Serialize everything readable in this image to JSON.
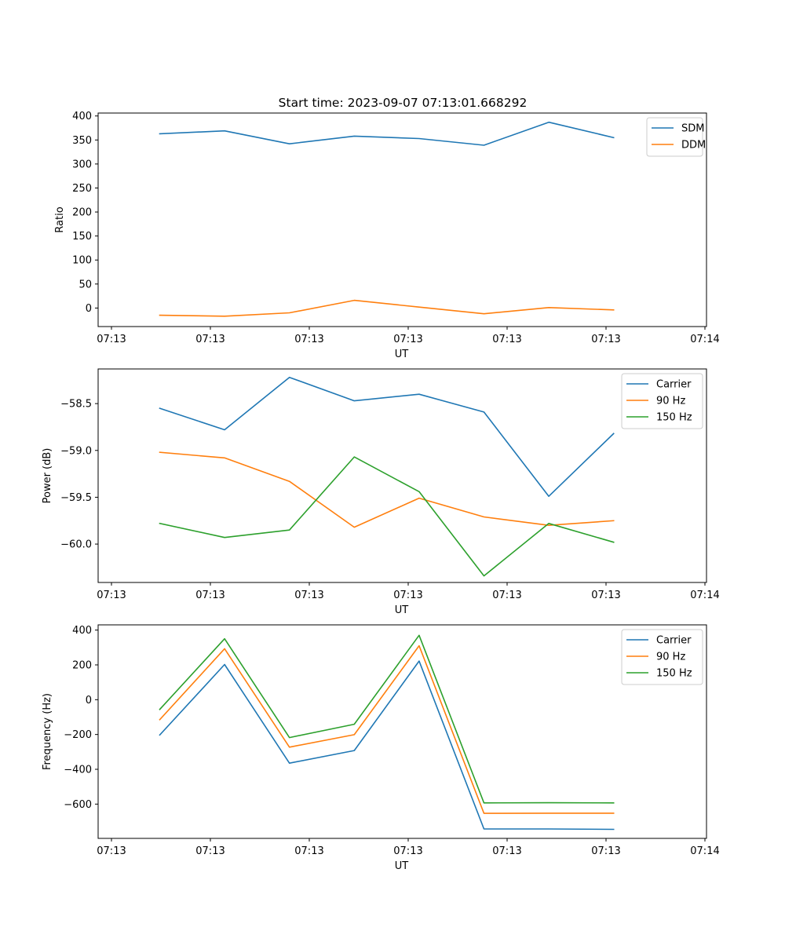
{
  "title": "Start time: 2023-09-07 07:13:01.668292",
  "colors": {
    "blue": "#1f77b4",
    "orange": "#ff7f0e",
    "green": "#2ca02c"
  },
  "chart_data": [
    {
      "type": "line",
      "xlabel": "UT",
      "ylabel": "Ratio",
      "x_tick_labels": [
        "07:13",
        "07:13",
        "07:13",
        "07:13",
        "07:13",
        "07:13",
        "07:14"
      ],
      "y_ticks": [
        0,
        50,
        100,
        150,
        200,
        250,
        300,
        350,
        400
      ],
      "y_tick_labels": [
        "0",
        "50",
        "100",
        "150",
        "200",
        "250",
        "300",
        "350",
        "400"
      ],
      "ylim": [
        -38.6,
        406.1
      ],
      "x_index": [
        0,
        1,
        2,
        3,
        4,
        5,
        6,
        7
      ],
      "legend": "top-right",
      "series": [
        {
          "name": "SDM",
          "color": "blue",
          "values": [
            363,
            369,
            342,
            358,
            353,
            339,
            387,
            355
          ]
        },
        {
          "name": "DDM",
          "color": "orange",
          "values": [
            -15,
            -17,
            -10,
            16,
            2,
            -12,
            1,
            -4
          ]
        }
      ]
    },
    {
      "type": "line",
      "xlabel": "UT",
      "ylabel": "Power (dB)",
      "x_tick_labels": [
        "07:13",
        "07:13",
        "07:13",
        "07:13",
        "07:13",
        "07:13",
        "07:14"
      ],
      "y_ticks": [
        -58.5,
        -59.0,
        -59.5,
        -60.0
      ],
      "y_tick_labels": [
        "−58.5",
        "−59.0",
        "−59.5",
        "−60.0"
      ],
      "ylim": [
        -60.41,
        -58.13
      ],
      "x_index": [
        0,
        1,
        2,
        3,
        4,
        5,
        6,
        7
      ],
      "legend": "top-right",
      "series": [
        {
          "name": "Carrier",
          "color": "blue",
          "values": [
            -58.55,
            -58.78,
            -58.22,
            -58.47,
            -58.4,
            -58.59,
            -59.49,
            -58.82
          ]
        },
        {
          "name": "90 Hz",
          "color": "orange",
          "values": [
            -59.02,
            -59.08,
            -59.33,
            -59.82,
            -59.51,
            -59.71,
            -59.8,
            -59.75
          ]
        },
        {
          "name": "150 Hz",
          "color": "green",
          "values": [
            -59.78,
            -59.93,
            -59.85,
            -59.07,
            -59.44,
            -60.34,
            -59.78,
            -59.98
          ]
        }
      ]
    },
    {
      "type": "line",
      "xlabel": "UT",
      "ylabel": "Frequency (Hz)",
      "x_tick_labels": [
        "07:13",
        "07:13",
        "07:13",
        "07:13",
        "07:13",
        "07:13",
        "07:14"
      ],
      "y_ticks": [
        400,
        200,
        0,
        -200,
        -400,
        -600
      ],
      "y_tick_labels": [
        "400",
        "200",
        "0",
        "−200",
        "−400",
        "−600"
      ],
      "ylim": [
        -797,
        430
      ],
      "x_index": [
        0,
        1,
        2,
        3,
        4,
        5,
        6,
        7
      ],
      "legend": "top-right",
      "series": [
        {
          "name": "Carrier",
          "color": "blue",
          "values": [
            -203,
            202,
            -365,
            -292,
            222,
            -743,
            -743,
            -745
          ]
        },
        {
          "name": "90 Hz",
          "color": "orange",
          "values": [
            -115,
            293,
            -273,
            -201,
            310,
            -653,
            -652,
            -652
          ]
        },
        {
          "name": "150 Hz",
          "color": "green",
          "values": [
            -56,
            350,
            -218,
            -141,
            370,
            -593,
            -592,
            -593
          ]
        }
      ]
    }
  ]
}
